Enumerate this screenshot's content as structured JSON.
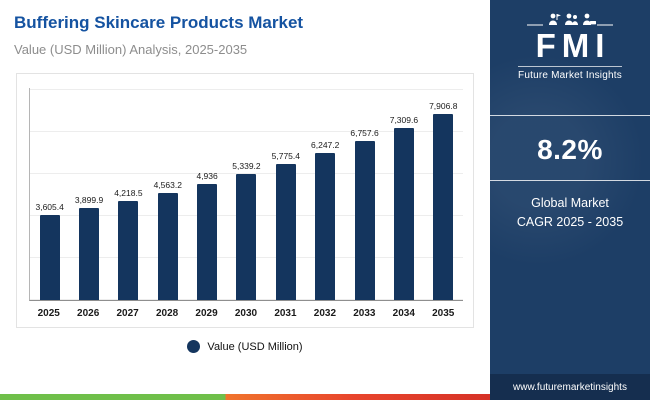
{
  "header": {
    "title": "Buffering Skincare Products Market",
    "subtitle": "Value (USD Million) Analysis, 2025-2035"
  },
  "chart_data": {
    "type": "bar",
    "title": "Buffering Skincare Products Market",
    "xlabel": "",
    "ylabel": "Value (USD Million)",
    "categories": [
      "2025",
      "2026",
      "2027",
      "2028",
      "2029",
      "2030",
      "2031",
      "2032",
      "2033",
      "2034",
      "2035"
    ],
    "values": [
      3605.4,
      3899.9,
      4218.5,
      4563.2,
      4936,
      5339.2,
      5775.4,
      6247.2,
      6757.6,
      7309.6,
      7906.8
    ],
    "value_labels": [
      "3,605.4",
      "3,899.9",
      "4,218.5",
      "4,563.2",
      "4,936",
      "5,339.2",
      "5,775.4",
      "6,247.2",
      "6,757.6",
      "7,309.6",
      "7,906.8"
    ],
    "ylim": [
      0,
      9000
    ],
    "grid": true,
    "legend": "Value (USD Million)",
    "legend_position": "bottom",
    "bar_color": "#14355e"
  },
  "sidebar": {
    "brand": "FMI",
    "brand_sub": "Future Market Insights",
    "cagr": "8.2%",
    "caption": [
      "Global Market",
      "CAGR 2025 - 2035"
    ],
    "website": "www.futuremarketinsights",
    "panel_bg": "#1d3e66",
    "urlbar_bg": "#152e4f"
  },
  "colors": {
    "title_blue": "#1553a1",
    "bar_navy": "#14355e",
    "strip_green": "#6fbf4a",
    "strip_orange": "#f0742c",
    "strip_red": "#d63227"
  }
}
